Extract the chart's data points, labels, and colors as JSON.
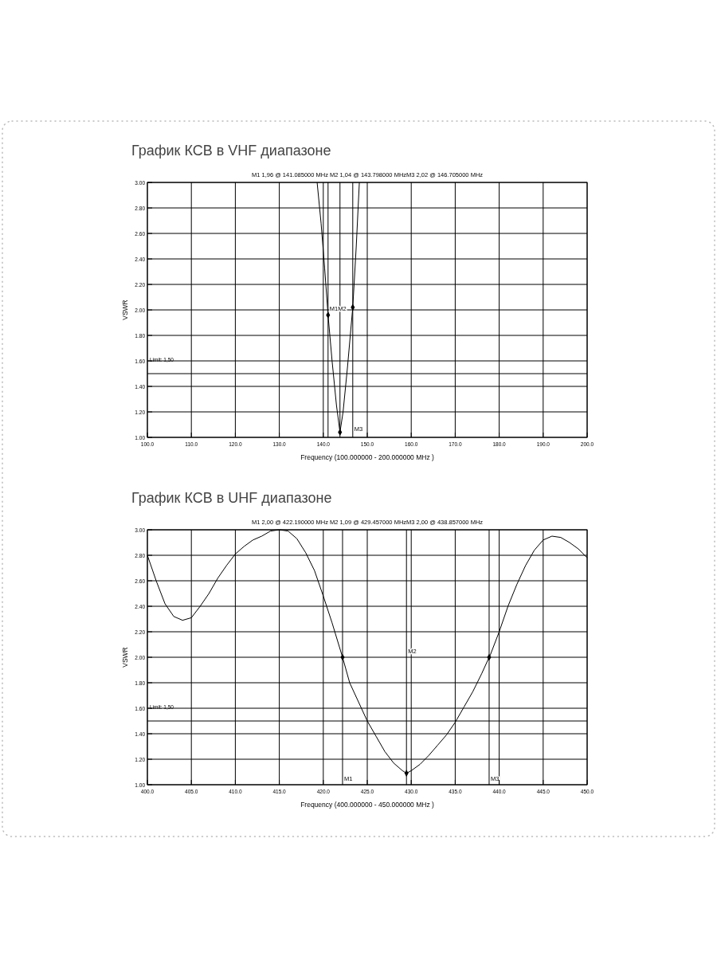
{
  "chart_data": [
    {
      "type": "line",
      "title": "График КСВ в VHF диапазоне",
      "subtitle": "M1  1,96 @ 141.085000 MHz  M2  1,04 @ 143.798000 MHzM3  2,02 @ 146.705000 MHz",
      "xlabel": "Frequency (100.000000 - 200.000000 MHz )",
      "ylabel": "VSWR",
      "xlim": [
        100,
        200
      ],
      "ylim": [
        1,
        3
      ],
      "xticks": [
        {
          "value": 100,
          "label": "100.0"
        },
        {
          "value": 110,
          "label": "110.0"
        },
        {
          "value": 120,
          "label": "120.0"
        },
        {
          "value": 130,
          "label": "130.0"
        },
        {
          "value": 140,
          "label": "140.0"
        },
        {
          "value": 150,
          "label": "150.0"
        },
        {
          "value": 160,
          "label": "160.0"
        },
        {
          "value": 170,
          "label": "170.0"
        },
        {
          "value": 180,
          "label": "180.0"
        },
        {
          "value": 190,
          "label": "190.0"
        },
        {
          "value": 200,
          "label": "200.0"
        }
      ],
      "yticks": [
        {
          "value": 1,
          "label": "1.00"
        },
        {
          "value": 1.2,
          "label": "1.20"
        },
        {
          "value": 1.4,
          "label": "1.40"
        },
        {
          "value": 1.6,
          "label": "1.60"
        },
        {
          "value": 1.8,
          "label": "1.80"
        },
        {
          "value": 2,
          "label": "2.00"
        },
        {
          "value": 2.2,
          "label": "2.20"
        },
        {
          "value": 2.4,
          "label": "2.40"
        },
        {
          "value": 2.6,
          "label": "2.60"
        },
        {
          "value": 2.8,
          "label": "2.80"
        },
        {
          "value": 3,
          "label": "3.00"
        }
      ],
      "grid": true,
      "line_style": "solid",
      "marker": "none",
      "series": [
        {
          "color": "#000000",
          "x": [
            138.6,
            139.5,
            140.3,
            141.085,
            142,
            143,
            143.798,
            144.5,
            145.5,
            146.705,
            147.5,
            148.2
          ],
          "values": [
            3.0,
            2.68,
            2.33,
            1.96,
            1.6,
            1.25,
            1.04,
            1.2,
            1.55,
            2.02,
            2.5,
            3.0
          ]
        },
        {
          "type": "scatter",
          "marker": "diamond",
          "color": "#000000",
          "x": [
            141.085,
            143.798,
            146.705
          ],
          "values": [
            1.96,
            1.04,
            2.02
          ]
        }
      ],
      "ref_lines": [
        {
          "axis": "y",
          "value": 1.5,
          "label": "Limit: 1,50",
          "color": "#000000"
        },
        {
          "axis": "x",
          "value": 141.085,
          "color": "#000000"
        },
        {
          "axis": "x",
          "value": 143.798,
          "color": "#000000"
        },
        {
          "axis": "x",
          "value": 146.705,
          "color": "#000000"
        }
      ],
      "annotations": [
        {
          "text": "M1M2",
          "x": 141.085,
          "y": 1.96
        },
        {
          "text": "M3",
          "x": 146.705,
          "y": 1.02
        }
      ]
    },
    {
      "type": "line",
      "title": "График КСВ в UHF диапазоне",
      "subtitle": "M1  2,00 @ 422.190000 MHz  M2  1,09 @ 429.457000 MHzM3  2,00 @ 438.857000 MHz",
      "xlabel": "Frequency (400.000000 - 450.000000 MHz )",
      "ylabel": "VSWR",
      "xlim": [
        400,
        450
      ],
      "ylim": [
        1,
        3
      ],
      "xticks": [
        {
          "value": 400,
          "label": "400.0"
        },
        {
          "value": 405,
          "label": "405.0"
        },
        {
          "value": 410,
          "label": "410.0"
        },
        {
          "value": 415,
          "label": "415.0"
        },
        {
          "value": 420,
          "label": "420.0"
        },
        {
          "value": 425,
          "label": "425.0"
        },
        {
          "value": 430,
          "label": "430.0"
        },
        {
          "value": 435,
          "label": "435.0"
        },
        {
          "value": 440,
          "label": "440.0"
        },
        {
          "value": 445,
          "label": "445.0"
        },
        {
          "value": 450,
          "label": "450.0"
        }
      ],
      "yticks": [
        {
          "value": 1,
          "label": "1.00"
        },
        {
          "value": 1.2,
          "label": "1.20"
        },
        {
          "value": 1.4,
          "label": "1.40"
        },
        {
          "value": 1.6,
          "label": "1.60"
        },
        {
          "value": 1.8,
          "label": "1.80"
        },
        {
          "value": 2,
          "label": "2.00"
        },
        {
          "value": 2.2,
          "label": "2.20"
        },
        {
          "value": 2.4,
          "label": "2.40"
        },
        {
          "value": 2.6,
          "label": "2.60"
        },
        {
          "value": 2.8,
          "label": "2.80"
        },
        {
          "value": 3,
          "label": "3.00"
        }
      ],
      "grid": true,
      "line_style": "solid",
      "marker": "none",
      "series": [
        {
          "color": "#000000",
          "x": [
            400,
            401,
            402,
            403,
            404,
            405,
            406,
            407,
            408,
            409,
            410,
            411,
            412,
            413,
            414,
            415,
            416,
            417,
            418,
            419,
            420,
            421,
            422.19,
            423,
            424,
            425,
            426,
            427,
            428,
            429,
            429.457,
            430,
            431,
            432,
            433,
            434,
            435,
            436,
            437,
            438,
            438.857,
            439,
            440,
            441,
            442,
            443,
            444,
            445,
            446,
            447,
            448,
            449,
            450
          ],
          "values": [
            2.8,
            2.6,
            2.42,
            2.32,
            2.29,
            2.31,
            2.4,
            2.5,
            2.62,
            2.72,
            2.81,
            2.87,
            2.92,
            2.95,
            2.99,
            3.0,
            2.99,
            2.93,
            2.82,
            2.68,
            2.48,
            2.27,
            2.0,
            1.8,
            1.65,
            1.5,
            1.38,
            1.26,
            1.17,
            1.11,
            1.09,
            1.11,
            1.16,
            1.23,
            1.31,
            1.39,
            1.49,
            1.61,
            1.73,
            1.87,
            2.0,
            2.02,
            2.2,
            2.4,
            2.57,
            2.72,
            2.84,
            2.92,
            2.95,
            2.94,
            2.9,
            2.85,
            2.78
          ]
        },
        {
          "type": "scatter",
          "marker": "diamond",
          "color": "#000000",
          "x": [
            422.19,
            429.457,
            438.857
          ],
          "values": [
            2.0,
            1.09,
            2.0
          ]
        }
      ],
      "ref_lines": [
        {
          "axis": "y",
          "value": 1.5,
          "label": "Limit: 1,50",
          "color": "#000000"
        },
        {
          "axis": "x",
          "value": 422.19,
          "color": "#000000"
        },
        {
          "axis": "x",
          "value": 429.457,
          "color": "#000000"
        },
        {
          "axis": "x",
          "value": 438.857,
          "color": "#000000"
        }
      ],
      "annotations": [
        {
          "text": "M1",
          "x": 422.19,
          "y": 1.0
        },
        {
          "text": "M2",
          "x": 429.457,
          "y": 2.0
        },
        {
          "text": "M3",
          "x": 438.857,
          "y": 1.0
        }
      ]
    }
  ]
}
